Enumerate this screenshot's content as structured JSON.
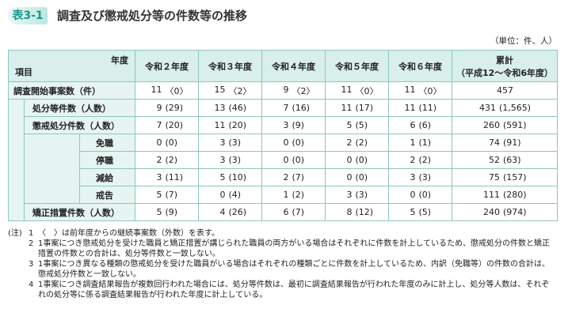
{
  "header": {
    "label": "表3-1",
    "title": "調査及び懲戒処分等の件数等の推移",
    "unit": "（単位：件、人）"
  },
  "table": {
    "header": {
      "year_label": "年度",
      "item_label": "項目",
      "columns": [
        "令和２年度",
        "令和３年度",
        "令和４年度",
        "令和５年度",
        "令和６年度"
      ],
      "cumulative": [
        "累計",
        "（平成12～令和6年度）"
      ]
    },
    "rows": [
      {
        "label": "調査開始事案数（件）",
        "cells": [
          [
            "11",
            "〈0〉"
          ],
          [
            "15",
            "〈2〉"
          ],
          [
            "9",
            "〈2〉"
          ],
          [
            "11",
            "〈0〉"
          ],
          [
            "11",
            "〈0〉"
          ],
          [
            "457"
          ]
        ]
      },
      {
        "label": "処分等件数（人数）",
        "cells": [
          [
            "9",
            "(29)"
          ],
          [
            "13",
            "(46)"
          ],
          [
            "7",
            "(16)"
          ],
          [
            "11",
            "(17)"
          ],
          [
            "11",
            "(11)"
          ],
          [
            "431",
            "(1,565)"
          ]
        ]
      },
      {
        "label": "懲戒処分件数（人数）",
        "cells": [
          [
            "7",
            "(20)"
          ],
          [
            "11",
            "(20)"
          ],
          [
            "3",
            "(9)"
          ],
          [
            "5",
            "(5)"
          ],
          [
            "6",
            "(6)"
          ],
          [
            "260",
            "(591)"
          ]
        ]
      },
      {
        "label": "免職",
        "cells": [
          [
            "0",
            "(0)"
          ],
          [
            "3",
            "(3)"
          ],
          [
            "0",
            "(0)"
          ],
          [
            "2",
            "(2)"
          ],
          [
            "1",
            "(1)"
          ],
          [
            "74",
            "(91)"
          ]
        ]
      },
      {
        "label": "停職",
        "cells": [
          [
            "2",
            "(2)"
          ],
          [
            "3",
            "(3)"
          ],
          [
            "0",
            "(0)"
          ],
          [
            "0",
            "(0)"
          ],
          [
            "2",
            "(2)"
          ],
          [
            "52",
            "(63)"
          ]
        ]
      },
      {
        "label": "減給",
        "cells": [
          [
            "3",
            "(11)"
          ],
          [
            "5",
            "(10)"
          ],
          [
            "2",
            "(7)"
          ],
          [
            "0",
            "(0)"
          ],
          [
            "3",
            "(3)"
          ],
          [
            "75",
            "(157)"
          ]
        ]
      },
      {
        "label": "戒告",
        "cells": [
          [
            "5",
            "(7)"
          ],
          [
            "0",
            "(4)"
          ],
          [
            "1",
            "(2)"
          ],
          [
            "3",
            "(3)"
          ],
          [
            "0",
            "(0)"
          ],
          [
            "111",
            "(280)"
          ]
        ]
      },
      {
        "label": "矯正措置件数（人数）",
        "cells": [
          [
            "5",
            "(9)"
          ],
          [
            "4",
            "(26)"
          ],
          [
            "6",
            "(7)"
          ],
          [
            "8",
            "(12)"
          ],
          [
            "5",
            "(5)"
          ],
          [
            "240",
            "(974)"
          ]
        ]
      }
    ]
  },
  "notes": {
    "label": "(注)",
    "items": [
      {
        "number": "1",
        "text": "〈　〉は前年度からの継続事案数（外数）を表す。"
      },
      {
        "number": "2",
        "text": "1事案につき懲戒処分を受けた職員と矯正措置が講じられた職員の両方がいる場合はそれぞれに件数を計上しているため、懲戒処分の件数と矯正措置の件数との合計は、処分等件数と一致しない。"
      },
      {
        "number": "3",
        "text": "1事案につき異なる種類の懲戒処分を受けた職員がいる場合はそれぞれの種類ごとに件数を計上しているため、内訳（免職等）の件数の合計は、懲戒処分件数と一致しない。"
      },
      {
        "number": "4",
        "text": "1事案につき調査結果報告が複数回行われた場合には、処分等件数は、最初に調査結果報告が行われた年度のみに計上し、処分等人数は、それぞれの処分等に係る調査結果報告が行われた年度に計上している。"
      }
    ]
  }
}
